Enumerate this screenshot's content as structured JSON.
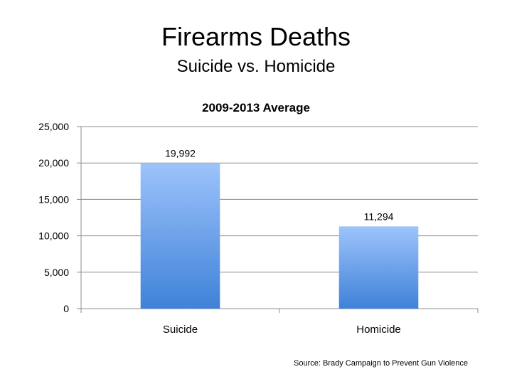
{
  "slide": {
    "title": "Firearms Deaths",
    "subtitle": "Suicide vs. Homicide",
    "source": "Source: Brady Campaign to Prevent Gun Violence"
  },
  "chart_data": {
    "type": "bar",
    "title": "2009-2013 Average",
    "xlabel": "",
    "ylabel": "",
    "categories": [
      "Suicide",
      "Homicide"
    ],
    "values": [
      19992,
      11294
    ],
    "data_labels": [
      "19,992",
      "11,294"
    ],
    "ylim": [
      0,
      25000
    ],
    "yticks": [
      0,
      5000,
      10000,
      15000,
      20000,
      25000
    ],
    "ytick_labels": [
      "0",
      "5,000",
      "10,000",
      "15,000",
      "20,000",
      "25,000"
    ],
    "grid": true,
    "legend": "none",
    "colors": {
      "bar_top": "#9dc3fb",
      "bar_bottom": "#3f82d8",
      "gridline": "#8c8c8c",
      "axis": "#8c8c8c"
    }
  }
}
